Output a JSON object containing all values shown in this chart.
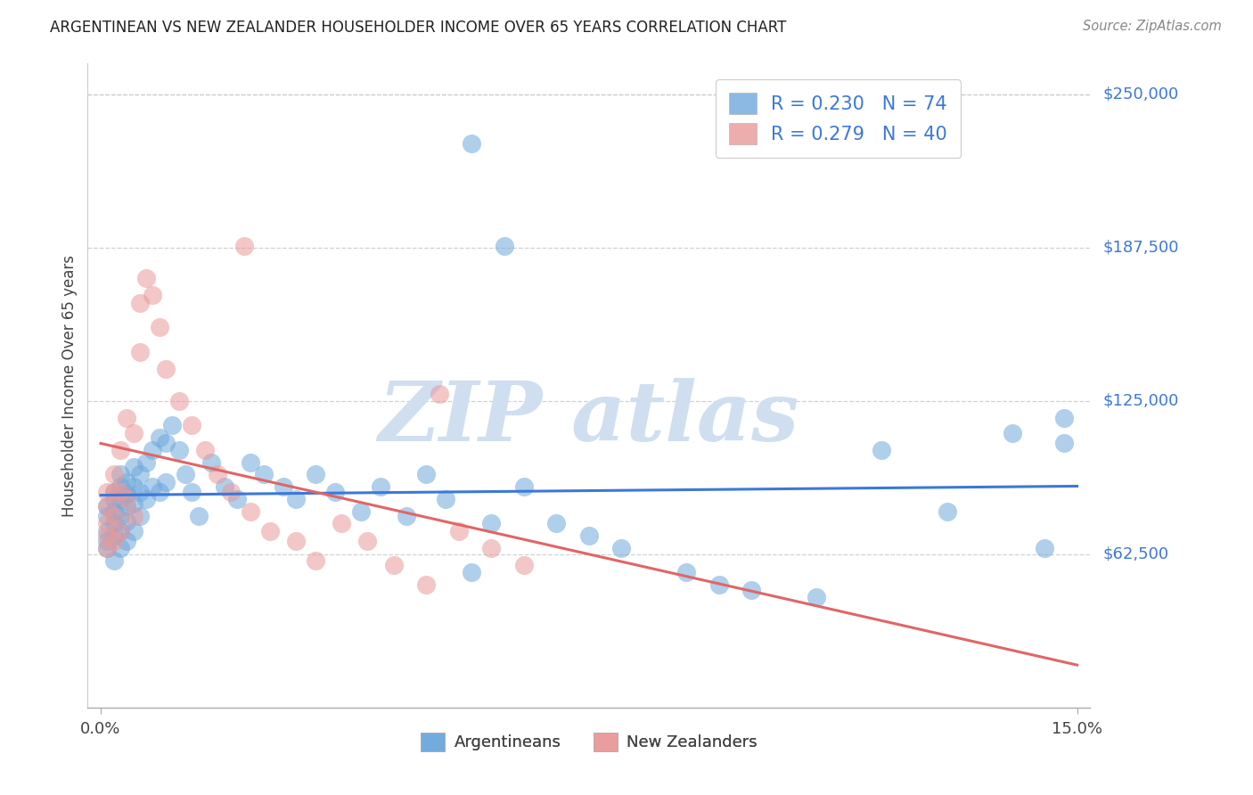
{
  "title": "ARGENTINEAN VS NEW ZEALANDER HOUSEHOLDER INCOME OVER 65 YEARS CORRELATION CHART",
  "source": "Source: ZipAtlas.com",
  "ylabel": "Householder Income Over 65 years",
  "xlim": [
    0.0,
    0.15
  ],
  "ylim": [
    0,
    262500
  ],
  "ytick_values": [
    62500,
    125000,
    187500,
    250000
  ],
  "ytick_labels": [
    "$62,500",
    "$125,000",
    "$187,500",
    "$250,000"
  ],
  "blue_scatter_color": "#6fa8dc",
  "pink_scatter_color": "#ea9999",
  "blue_line_color": "#3c78d8",
  "pink_line_color": "#e06666",
  "watermark_color": "#b8cce4",
  "grid_color": "#cccccc",
  "text_color": "#434343",
  "legend_r1": "R = 0.230",
  "legend_n1": "N = 74",
  "legend_r2": "R = 0.279",
  "legend_n2": "N = 40",
  "argentinean_label": "Argentineans",
  "nz_label": "New Zealanders",
  "blue_x": [
    0.001,
    0.001,
    0.001,
    0.001,
    0.001,
    0.002,
    0.002,
    0.002,
    0.002,
    0.002,
    0.002,
    0.003,
    0.003,
    0.003,
    0.003,
    0.003,
    0.003,
    0.004,
    0.004,
    0.004,
    0.004,
    0.004,
    0.005,
    0.005,
    0.005,
    0.005,
    0.006,
    0.006,
    0.006,
    0.007,
    0.007,
    0.008,
    0.008,
    0.009,
    0.009,
    0.01,
    0.01,
    0.011,
    0.012,
    0.013,
    0.014,
    0.015,
    0.017,
    0.019,
    0.021,
    0.023,
    0.025,
    0.028,
    0.03,
    0.033,
    0.036,
    0.04,
    0.043,
    0.047,
    0.05,
    0.053,
    0.057,
    0.06,
    0.065,
    0.07,
    0.075,
    0.08,
    0.09,
    0.095,
    0.1,
    0.11,
    0.12,
    0.13,
    0.14,
    0.145,
    0.148,
    0.148,
    0.057,
    0.062
  ],
  "blue_y": [
    82000,
    78000,
    72000,
    68000,
    65000,
    88000,
    85000,
    80000,
    75000,
    70000,
    60000,
    95000,
    90000,
    85000,
    78000,
    72000,
    65000,
    92000,
    87000,
    82000,
    76000,
    68000,
    98000,
    90000,
    83000,
    72000,
    95000,
    88000,
    78000,
    100000,
    85000,
    105000,
    90000,
    110000,
    88000,
    108000,
    92000,
    115000,
    105000,
    95000,
    88000,
    78000,
    100000,
    90000,
    85000,
    100000,
    95000,
    90000,
    85000,
    95000,
    88000,
    80000,
    90000,
    78000,
    95000,
    85000,
    55000,
    75000,
    90000,
    75000,
    70000,
    65000,
    55000,
    50000,
    48000,
    45000,
    105000,
    80000,
    112000,
    65000,
    118000,
    108000,
    230000,
    188000
  ],
  "pink_x": [
    0.001,
    0.001,
    0.001,
    0.001,
    0.001,
    0.002,
    0.002,
    0.002,
    0.002,
    0.003,
    0.003,
    0.003,
    0.004,
    0.004,
    0.005,
    0.005,
    0.006,
    0.006,
    0.007,
    0.008,
    0.009,
    0.01,
    0.012,
    0.014,
    0.016,
    0.018,
    0.02,
    0.023,
    0.026,
    0.03,
    0.033,
    0.037,
    0.041,
    0.045,
    0.05,
    0.055,
    0.06,
    0.065,
    0.052,
    0.022
  ],
  "pink_y": [
    88000,
    82000,
    75000,
    70000,
    65000,
    95000,
    88000,
    78000,
    68000,
    105000,
    88000,
    72000,
    118000,
    85000,
    112000,
    78000,
    165000,
    145000,
    175000,
    168000,
    155000,
    138000,
    125000,
    115000,
    105000,
    95000,
    88000,
    80000,
    72000,
    68000,
    60000,
    75000,
    68000,
    58000,
    50000,
    72000,
    65000,
    58000,
    128000,
    188000
  ]
}
